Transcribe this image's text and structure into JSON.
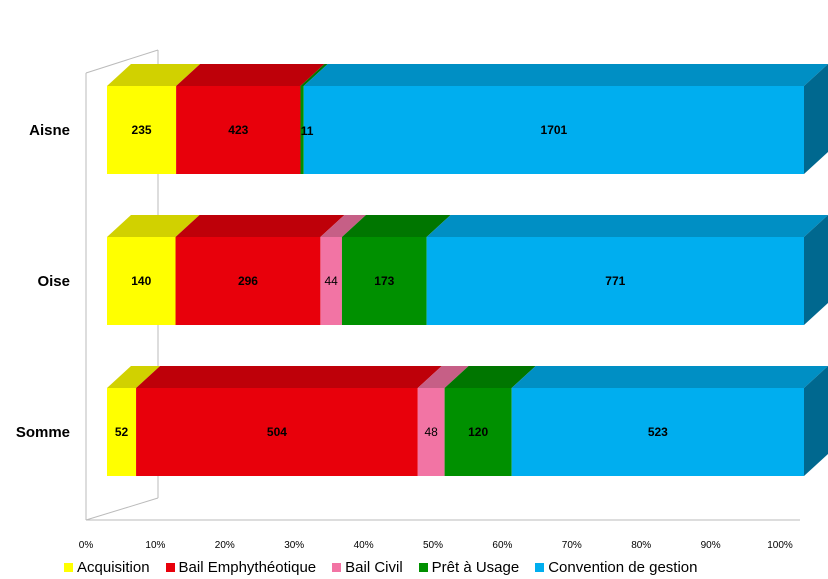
{
  "chart_data": {
    "type": "bar",
    "orientation": "horizontal",
    "stacked": "percent",
    "three_d": true,
    "categories": [
      "Aisne",
      "Oise",
      "Somme"
    ],
    "series": [
      {
        "name": "Acquisition",
        "color": "#ffff00",
        "values": [
          235,
          140,
          52
        ]
      },
      {
        "name": "Bail Emphythéotique",
        "color": "#e8000b",
        "values": [
          423,
          296,
          504
        ]
      },
      {
        "name": "Bail Civil",
        "color": "#f274a4",
        "values": [
          0,
          44,
          48
        ]
      },
      {
        "name": "Prêt à Usage",
        "color": "#009000",
        "values": [
          11,
          173,
          120
        ]
      },
      {
        "name": "Convention de gestion",
        "color": "#00aeef",
        "values": [
          1701,
          771,
          523
        ]
      }
    ],
    "data_labels": [
      [
        "235",
        "423",
        "",
        "11",
        "1701"
      ],
      [
        "140",
        "296",
        "44",
        "173",
        "771"
      ],
      [
        "52",
        "504",
        "48",
        "120",
        "523"
      ]
    ],
    "xlim": [
      0,
      100
    ],
    "xticks": [
      "0%",
      "10%",
      "20%",
      "30%",
      "40%",
      "50%",
      "60%",
      "70%",
      "80%",
      "90%",
      "100%"
    ],
    "legend_position": "bottom",
    "grid": false
  }
}
